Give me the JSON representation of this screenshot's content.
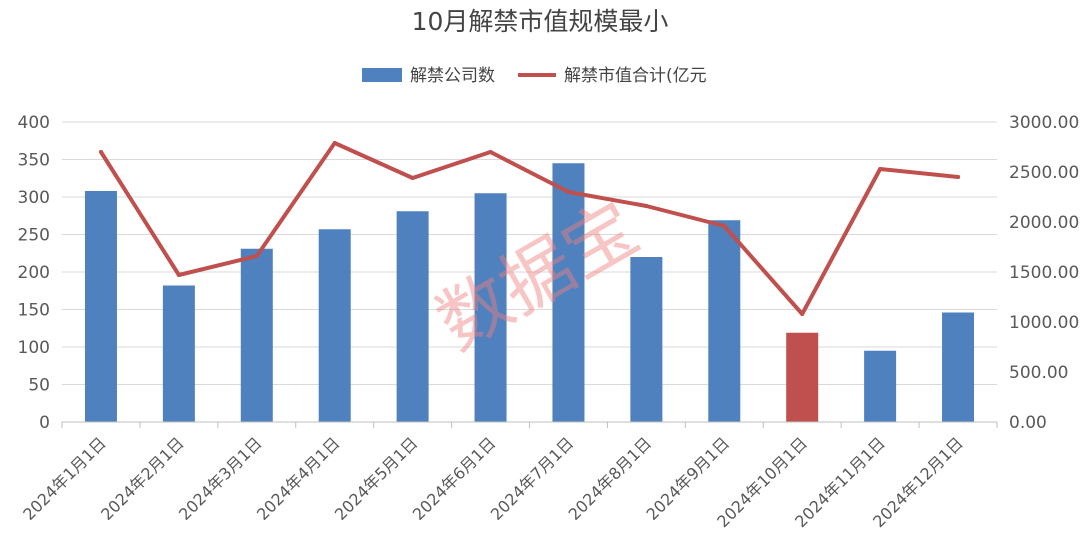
{
  "chart_data": {
    "type": "bar",
    "title": "10月解禁市值规模最小",
    "categories": [
      "2024年1月1日",
      "2024年2月1日",
      "2024年3月1日",
      "2024年4月1日",
      "2024年5月1日",
      "2024年6月1日",
      "2024年7月1日",
      "2024年8月1日",
      "2024年9月1日",
      "2024年10月1日",
      "2024年11月1日",
      "2024年12月1日"
    ],
    "series": [
      {
        "name": "解禁公司数",
        "type": "bar",
        "axis": "left",
        "color": "#4e81bd",
        "values": [
          308,
          182,
          231,
          257,
          281,
          305,
          345,
          220,
          269,
          119,
          95,
          146
        ]
      },
      {
        "name": "解禁市值合计(亿元",
        "type": "line",
        "axis": "right",
        "color": "#c0504d",
        "values": [
          2700,
          1470,
          1660,
          2790,
          2440,
          2700,
          2300,
          2160,
          1960,
          1080,
          2530,
          2450
        ]
      }
    ],
    "highlight": {
      "index": 9,
      "color": "#c0504d"
    },
    "y_left": {
      "min": 0,
      "max": 400,
      "ticks": [
        "0",
        "50",
        "100",
        "150",
        "200",
        "250",
        "300",
        "350",
        "400"
      ]
    },
    "y_right": {
      "min": 0,
      "max": 3000,
      "ticks": [
        "0.00",
        "500.00",
        "1000.00",
        "1500.00",
        "2000.00",
        "2500.00",
        "3000.00"
      ]
    },
    "grid": true,
    "legend_position": "top"
  },
  "watermark": "数据宝"
}
